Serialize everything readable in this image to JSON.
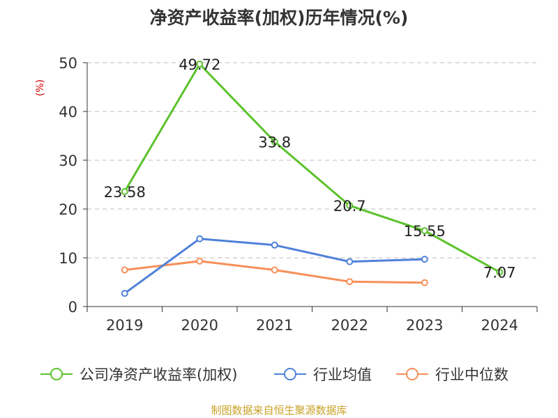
{
  "chart_data": {
    "type": "line",
    "title": "净资产收益率(加权)历年情况(%)",
    "ylabel": "(%)",
    "categories": [
      "2019",
      "2020",
      "2021",
      "2022",
      "2023",
      "2024"
    ],
    "ylim": [
      0,
      50
    ],
    "yticks": [
      "0",
      "10",
      "20",
      "30",
      "40",
      "50"
    ],
    "grid": true,
    "legend_position": "bottom",
    "series": [
      {
        "name": "公司净资产收益率(加权)",
        "color": "#5cc22c",
        "values": [
          23.58,
          49.72,
          33.8,
          20.7,
          15.55,
          7.07
        ],
        "labels": [
          "23.58",
          "49.72",
          "33.8",
          "20.7",
          "15.55",
          "7.07"
        ]
      },
      {
        "name": "行业均值",
        "color": "#4f81d9",
        "values": [
          2.7,
          13.9,
          12.6,
          9.2,
          9.7,
          null
        ]
      },
      {
        "name": "行业中位数",
        "color": "#f78f5a",
        "values": [
          7.5,
          9.3,
          7.5,
          5.1,
          4.9,
          null
        ]
      }
    ],
    "source": "制图数据来自恒生聚源数据库"
  }
}
